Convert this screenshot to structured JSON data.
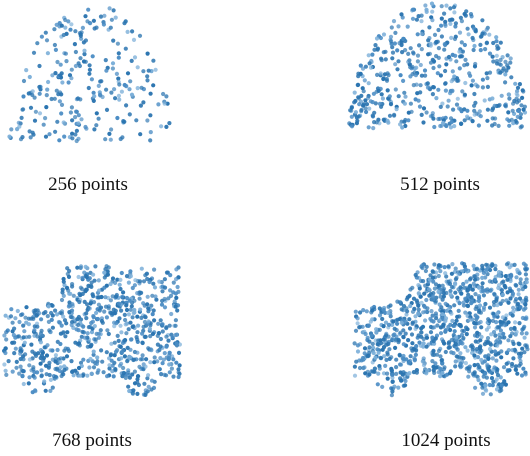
{
  "panels": [
    {
      "caption": "256 points"
    },
    {
      "caption": "512 points"
    },
    {
      "caption": "768 points"
    },
    {
      "caption": "1024 points"
    }
  ]
}
